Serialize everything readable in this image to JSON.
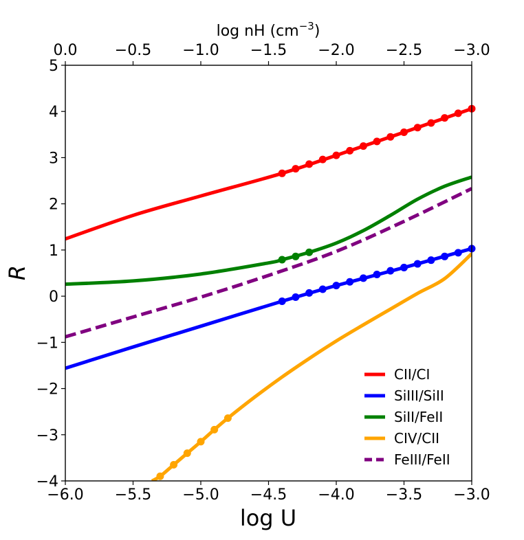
{
  "chart_data": {
    "type": "line",
    "title": "",
    "xlabel": "log U",
    "ylabel": "R",
    "top_xlabel_base": "log nH (cm",
    "top_xlabel_exp": "−3",
    "top_xlabel_end": ")",
    "xlim": [
      -6.0,
      -3.0
    ],
    "ylim": [
      -4,
      5
    ],
    "top_xlim": [
      0.0,
      -3.0
    ],
    "x_ticks": [
      {
        "value": -6.0,
        "label": "−6.0"
      },
      {
        "value": -5.5,
        "label": "−5.5"
      },
      {
        "value": -5.0,
        "label": "−5.0"
      },
      {
        "value": -4.5,
        "label": "−4.5"
      },
      {
        "value": -4.0,
        "label": "−4.0"
      },
      {
        "value": -3.5,
        "label": "−3.5"
      },
      {
        "value": -3.0,
        "label": "−3.0"
      }
    ],
    "top_x_ticks": [
      {
        "value": 0.0,
        "label": "0.0"
      },
      {
        "value": -0.5,
        "label": "−0.5"
      },
      {
        "value": -1.0,
        "label": "−1.0"
      },
      {
        "value": -1.5,
        "label": "−1.5"
      },
      {
        "value": -2.0,
        "label": "−2.0"
      },
      {
        "value": -2.5,
        "label": "−2.5"
      },
      {
        "value": -3.0,
        "label": "−3.0"
      }
    ],
    "y_ticks": [
      {
        "value": 5,
        "label": "5"
      },
      {
        "value": 4,
        "label": "4"
      },
      {
        "value": 3,
        "label": "3"
      },
      {
        "value": 2,
        "label": "2"
      },
      {
        "value": 1,
        "label": "1"
      },
      {
        "value": 0,
        "label": "0"
      },
      {
        "value": -1,
        "label": "−1"
      },
      {
        "value": -2,
        "label": "−2"
      },
      {
        "value": -3,
        "label": "−3"
      },
      {
        "value": -4,
        "label": "−4"
      }
    ],
    "legend_position": "lower-right",
    "series": [
      {
        "name": "CII/CI",
        "color": "#ff0000",
        "dashed": false,
        "x": [
          -6.0,
          -5.5,
          -5.0,
          -4.4,
          -4.0,
          -3.5,
          -3.0
        ],
        "y": [
          1.24,
          1.75,
          2.17,
          2.66,
          3.05,
          3.55,
          4.06
        ],
        "markers_x": [
          -4.4,
          -4.3,
          -4.2,
          -4.1,
          -4.0,
          -3.9,
          -3.8,
          -3.7,
          -3.6,
          -3.5,
          -3.4,
          -3.3,
          -3.2,
          -3.1,
          -3.0
        ],
        "markers_y": [
          2.66,
          2.76,
          2.86,
          2.96,
          3.05,
          3.15,
          3.25,
          3.35,
          3.45,
          3.55,
          3.65,
          3.75,
          3.86,
          3.96,
          4.06
        ]
      },
      {
        "name": "SiIII/SiII",
        "color": "#0000ff",
        "dashed": false,
        "x": [
          -6.0,
          -5.5,
          -5.0,
          -4.4,
          -4.0,
          -3.5,
          -3.0
        ],
        "y": [
          -1.56,
          -1.1,
          -0.65,
          -0.11,
          0.23,
          0.62,
          1.03
        ],
        "markers_x": [
          -4.4,
          -4.3,
          -4.2,
          -4.1,
          -4.0,
          -3.9,
          -3.8,
          -3.7,
          -3.6,
          -3.5,
          -3.4,
          -3.3,
          -3.2,
          -3.1,
          -3.0
        ],
        "markers_y": [
          -0.11,
          -0.02,
          0.07,
          0.15,
          0.23,
          0.31,
          0.39,
          0.47,
          0.55,
          0.62,
          0.7,
          0.78,
          0.86,
          0.94,
          1.03
        ]
      },
      {
        "name": "SiII/FeII",
        "color": "#008000",
        "dashed": false,
        "x": [
          -6.0,
          -5.5,
          -5.0,
          -4.5,
          -4.4,
          -4.2,
          -4.0,
          -3.8,
          -3.6,
          -3.4,
          -3.2,
          -3.0
        ],
        "y": [
          0.26,
          0.33,
          0.48,
          0.72,
          0.79,
          0.95,
          1.15,
          1.42,
          1.75,
          2.1,
          2.38,
          2.58
        ],
        "markers_x": [
          -4.4,
          -4.3,
          -4.2
        ],
        "markers_y": [
          0.79,
          0.86,
          0.95
        ]
      },
      {
        "name": "CIV/CII",
        "color": "#ffa500",
        "dashed": false,
        "x": [
          -5.36,
          -5.3,
          -5.2,
          -5.1,
          -5.0,
          -4.9,
          -4.8,
          -4.6,
          -4.4,
          -4.2,
          -4.0,
          -3.8,
          -3.6,
          -3.4,
          -3.2,
          -3.0
        ],
        "y": [
          -4.0,
          -3.9,
          -3.65,
          -3.4,
          -3.15,
          -2.89,
          -2.64,
          -2.18,
          -1.75,
          -1.35,
          -0.97,
          -0.62,
          -0.28,
          0.06,
          0.38,
          0.92
        ],
        "markers_x": [
          -5.3,
          -5.2,
          -5.1,
          -5.0,
          -4.9,
          -4.8
        ],
        "markers_y": [
          -3.9,
          -3.65,
          -3.4,
          -3.15,
          -2.89,
          -2.64
        ]
      },
      {
        "name": "FeIII/FeII",
        "color": "#800080",
        "dashed": true,
        "x": [
          -6.0,
          -5.5,
          -5.0,
          -4.5,
          -4.0,
          -3.5,
          -3.0
        ],
        "y": [
          -0.88,
          -0.45,
          -0.02,
          0.45,
          0.97,
          1.62,
          2.33
        ],
        "markers_x": [],
        "markers_y": []
      }
    ]
  }
}
